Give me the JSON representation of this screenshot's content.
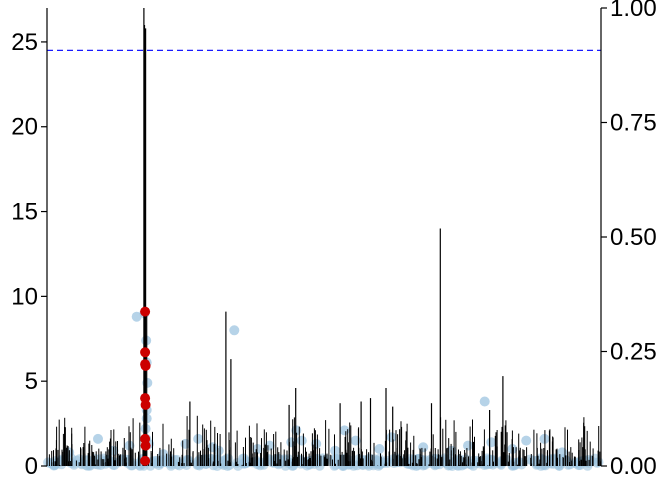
{
  "chart_data": {
    "type": "scatter",
    "title": "",
    "xlabel": "",
    "ylabel_left": "",
    "ylabel_right": "",
    "left_axis": {
      "ylim": [
        0,
        27
      ],
      "ticks": [
        0,
        5,
        10,
        15,
        20,
        25
      ],
      "tick_labels": [
        "0",
        "5",
        "10",
        "15",
        "20",
        "25"
      ]
    },
    "right_axis": {
      "ylim": [
        0,
        1
      ],
      "ticks": [
        0,
        0.25,
        0.5,
        0.75,
        1
      ],
      "tick_labels": [
        "0.00",
        "0.25",
        "0.50",
        "0.75",
        "1.00"
      ]
    },
    "xlim": [
      0,
      1000
    ],
    "threshold": {
      "value": 24.5,
      "color": "#1a1aff",
      "style": "dashed"
    },
    "colors": {
      "lines": "#000000",
      "points": "#9ec4e0",
      "highlight": "#cc0000"
    },
    "tall_lines": [
      {
        "x": 175,
        "y": 27
      },
      {
        "x": 176,
        "y": 26
      },
      {
        "x": 178,
        "y": 25.8
      },
      {
        "x": 180,
        "y": 9.0
      },
      {
        "x": 323,
        "y": 9.1
      },
      {
        "x": 332,
        "y": 6.3
      },
      {
        "x": 710,
        "y": 14.0
      },
      {
        "x": 823,
        "y": 5.3
      },
      {
        "x": 449,
        "y": 4.6
      },
      {
        "x": 612,
        "y": 4.6
      },
      {
        "x": 584,
        "y": 4.0
      },
      {
        "x": 258,
        "y": 3.8
      },
      {
        "x": 694,
        "y": 3.7
      },
      {
        "x": 529,
        "y": 3.7
      },
      {
        "x": 567,
        "y": 3.8
      },
      {
        "x": 624,
        "y": 3.5
      },
      {
        "x": 799,
        "y": 3.3
      },
      {
        "x": 437,
        "y": 3.6
      }
    ],
    "points": [
      {
        "x": 162,
        "y": 8.8
      },
      {
        "x": 176,
        "y": 9.0
      },
      {
        "x": 179,
        "y": 7.4
      },
      {
        "x": 180,
        "y": 6.1
      },
      {
        "x": 181,
        "y": 4.9
      },
      {
        "x": 180,
        "y": 3.3
      },
      {
        "x": 180,
        "y": 2.8
      },
      {
        "x": 178,
        "y": 2.2
      },
      {
        "x": 179,
        "y": 1.6
      },
      {
        "x": 184,
        "y": 1.3
      },
      {
        "x": 338,
        "y": 8.0
      },
      {
        "x": 790,
        "y": 3.8
      },
      {
        "x": 92,
        "y": 1.6
      },
      {
        "x": 149,
        "y": 1.2
      },
      {
        "x": 250,
        "y": 1.3
      },
      {
        "x": 273,
        "y": 1.6
      },
      {
        "x": 299,
        "y": 1.1
      },
      {
        "x": 402,
        "y": 1.2
      },
      {
        "x": 441,
        "y": 1.4
      },
      {
        "x": 450,
        "y": 2.1
      },
      {
        "x": 460,
        "y": 1.5
      },
      {
        "x": 486,
        "y": 1.3
      },
      {
        "x": 537,
        "y": 2.1
      },
      {
        "x": 557,
        "y": 1.5
      },
      {
        "x": 622,
        "y": 1.7
      },
      {
        "x": 679,
        "y": 1.1
      },
      {
        "x": 760,
        "y": 1.2
      },
      {
        "x": 802,
        "y": 1.4
      },
      {
        "x": 865,
        "y": 1.5
      },
      {
        "x": 898,
        "y": 1.6
      },
      {
        "x": 40,
        "y": 0.8
      },
      {
        "x": 120,
        "y": 0.9
      },
      {
        "x": 210,
        "y": 0.7
      },
      {
        "x": 310,
        "y": 0.9
      },
      {
        "x": 380,
        "y": 1.0
      },
      {
        "x": 520,
        "y": 0.9
      },
      {
        "x": 600,
        "y": 1.0
      },
      {
        "x": 730,
        "y": 0.9
      },
      {
        "x": 840,
        "y": 1.0
      },
      {
        "x": 930,
        "y": 0.8
      }
    ],
    "highlight_points": [
      {
        "x": 177,
        "y": 9.1
      },
      {
        "x": 177,
        "y": 6.7
      },
      {
        "x": 177,
        "y": 6.0
      },
      {
        "x": 178,
        "y": 5.9
      },
      {
        "x": 177,
        "y": 4.0
      },
      {
        "x": 178,
        "y": 3.6
      },
      {
        "x": 177,
        "y": 1.6
      },
      {
        "x": 178,
        "y": 1.2
      },
      {
        "x": 177,
        "y": 0.3
      }
    ]
  }
}
